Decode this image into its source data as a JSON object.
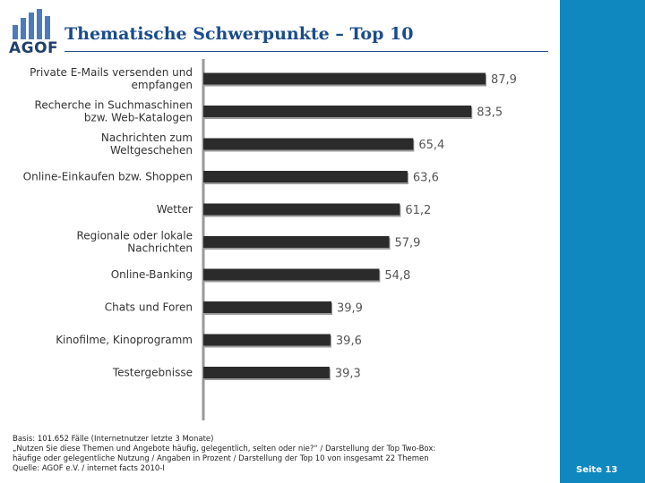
{
  "logo": {
    "text": "AGOF",
    "icon": "agof-logo-bars"
  },
  "title": "Thematische Schwerpunkte – Top 10",
  "page_number": "Seite 13",
  "colors": {
    "bar": "#2b2b2b",
    "bar_shadow": "#9a9a9a",
    "title": "#1a4c8c",
    "panel": "#0e88bf"
  },
  "chart_data": {
    "type": "bar",
    "orientation": "horizontal",
    "title": "Thematische Schwerpunkte – Top 10",
    "xlabel": "",
    "ylabel": "",
    "categories": [
      [
        "Private E-Mails versenden und",
        "empfangen"
      ],
      [
        "Recherche in Suchmaschinen",
        "bzw. Web-Katalogen"
      ],
      [
        "Nachrichten zum",
        "Weltgeschehen"
      ],
      [
        "Online-Einkaufen bzw. Shoppen"
      ],
      [
        "Wetter"
      ],
      [
        "Regionale oder lokale",
        "Nachrichten"
      ],
      [
        "Online-Banking"
      ],
      [
        "Chats und Foren"
      ],
      [
        "Kinofilme, Kinoprogramm"
      ],
      [
        "Testergebnisse"
      ]
    ],
    "values": [
      87.9,
      83.5,
      65.4,
      63.6,
      61.2,
      57.9,
      54.8,
      39.9,
      39.6,
      39.3
    ],
    "value_labels": [
      "87,9",
      "83,5",
      "65,4",
      "63,6",
      "61,2",
      "57,9",
      "54,8",
      "39,9",
      "39,6",
      "39,3"
    ],
    "xlim": [
      0,
      100
    ],
    "grid": false,
    "legend": "none"
  },
  "footnote": [
    "Basis: 101.652 Fälle (Internetnutzer letzte 3 Monate)",
    "„Nutzen Sie diese Themen und Angebote häufig, gelegentlich, selten oder nie?“ / Darstellung der Top Two-Box:",
    "häufige oder gelegentliche Nutzung / Angaben in Prozent / Darstellung der Top 10 von insgesamt 22 Themen",
    "Quelle: AGOF e.V. / internet facts 2010-I"
  ]
}
